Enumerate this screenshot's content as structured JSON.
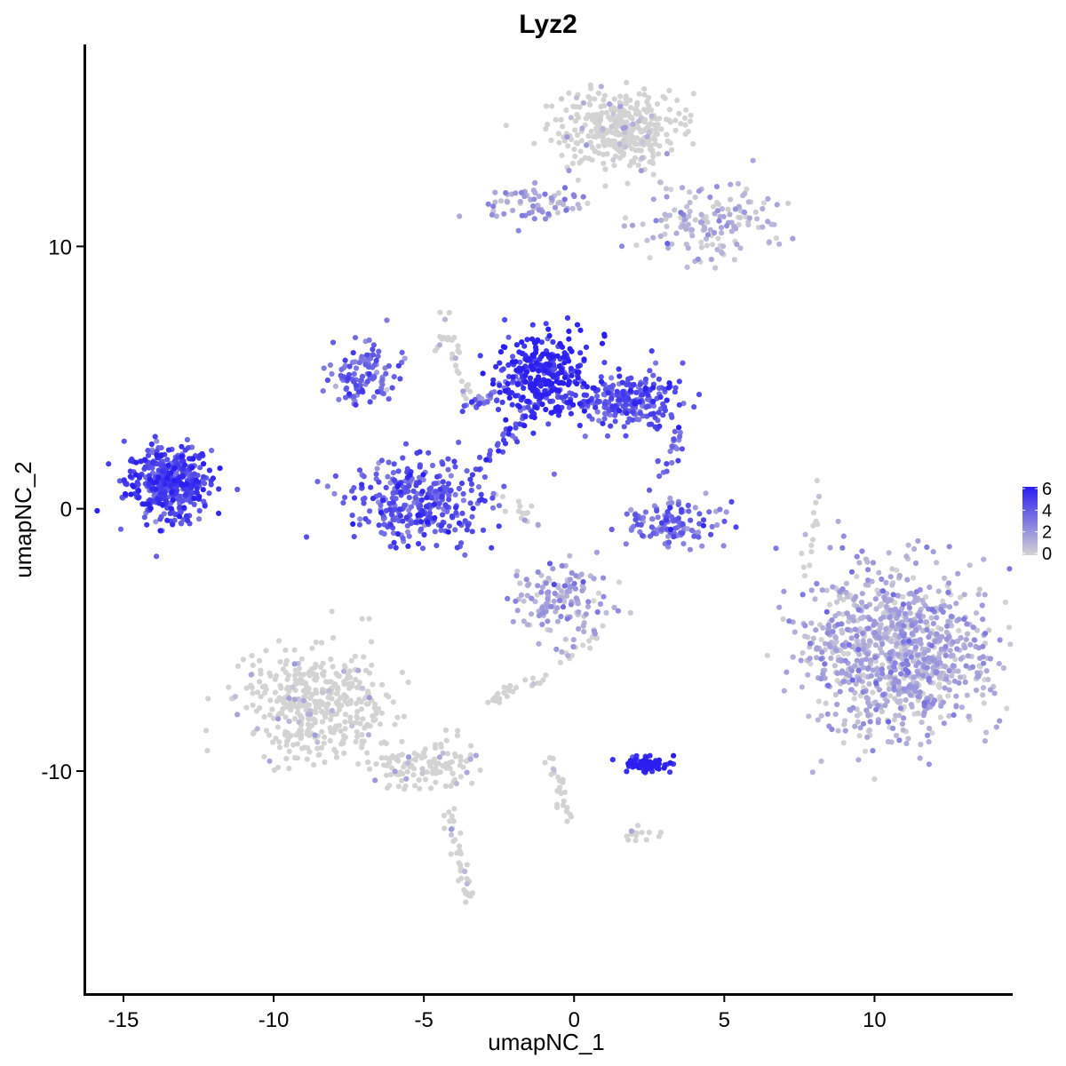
{
  "chart_data": {
    "type": "scatter",
    "title": "Lyz2",
    "xlabel": "umapNC_1",
    "ylabel": "umapNC_2",
    "xlim": [
      -16.3,
      14.6
    ],
    "ylim": [
      -18.5,
      17.7
    ],
    "x_ticks": [
      -15,
      -10,
      -5,
      0,
      5,
      10
    ],
    "x_tick_labels": [
      "-15",
      "-10",
      "-5",
      "0",
      "5",
      "10"
    ],
    "y_ticks": [
      10,
      0,
      -10
    ],
    "y_tick_labels": [
      "10",
      "0",
      "-10"
    ],
    "color_scale": {
      "low": "#d3d3d3",
      "high": "#2a1ff0",
      "min": 0,
      "max": 6
    },
    "legend": {
      "position": "right",
      "ticks": [
        "6",
        "4",
        "2",
        "0"
      ]
    },
    "grid": false,
    "clusters": [
      {
        "name": "far-left",
        "cx": -13.5,
        "cy": 1.0,
        "sx": 0.7,
        "sy": 0.7,
        "n": 420,
        "expr": 4.6
      },
      {
        "name": "upper-right-band",
        "cx": 1.5,
        "cy": 14.5,
        "sx": 1.0,
        "sy": 0.7,
        "n": 380,
        "expr": 0.3
      },
      {
        "name": "upper-right-arm",
        "cx": 4.5,
        "cy": 11.0,
        "sx": 1.2,
        "sy": 0.7,
        "n": 150,
        "expr": 0.8
      },
      {
        "name": "top-left-arm",
        "cx": -1.5,
        "cy": 11.7,
        "sx": 1.0,
        "sy": 0.35,
        "n": 70,
        "expr": 1.5
      },
      {
        "name": "center-hotspot",
        "cx": -1.0,
        "cy": 5.0,
        "sx": 0.8,
        "sy": 0.8,
        "n": 300,
        "expr": 5.6
      },
      {
        "name": "center-right",
        "cx": 1.8,
        "cy": 4.1,
        "sx": 0.9,
        "sy": 0.5,
        "n": 220,
        "expr": 4.2
      },
      {
        "name": "center-left-upper",
        "cx": -7.0,
        "cy": 5.2,
        "sx": 0.55,
        "sy": 0.6,
        "n": 110,
        "expr": 3.4
      },
      {
        "name": "center-arc-left",
        "cx": -5.2,
        "cy": 0.3,
        "sx": 1.2,
        "sy": 0.8,
        "n": 330,
        "expr": 4.1
      },
      {
        "name": "center-arc-right",
        "cx": 3.2,
        "cy": -0.5,
        "sx": 0.9,
        "sy": 0.4,
        "n": 120,
        "expr": 3.3
      },
      {
        "name": "right-large",
        "cx": 10.8,
        "cy": -5.5,
        "sx": 1.5,
        "sy": 1.6,
        "n": 1000,
        "expr": 1.1
      },
      {
        "name": "mid-lower",
        "cx": -0.5,
        "cy": -3.5,
        "sx": 0.8,
        "sy": 0.7,
        "n": 140,
        "expr": 1.3
      },
      {
        "name": "lower-left",
        "cx": -8.5,
        "cy": -7.5,
        "sx": 1.2,
        "sy": 1.0,
        "n": 420,
        "expr": 0.1
      },
      {
        "name": "lower-left-tail",
        "cx": -5.0,
        "cy": -9.8,
        "sx": 0.9,
        "sy": 0.5,
        "n": 120,
        "expr": 0.1
      },
      {
        "name": "lower-hotspot",
        "cx": 2.4,
        "cy": -9.7,
        "sx": 0.4,
        "sy": 0.15,
        "n": 90,
        "expr": 6.0
      }
    ],
    "trails": [
      {
        "from": [
          -3.5,
          3.8
        ],
        "to": [
          -1.2,
          5.5
        ],
        "n": 40,
        "expr": 3.0
      },
      {
        "from": [
          -3.0,
          1.8
        ],
        "to": [
          -1.5,
          3.8
        ],
        "n": 35,
        "expr": 4.5
      },
      {
        "from": [
          -4.2,
          -11.5
        ],
        "to": [
          -3.5,
          -15.0
        ],
        "n": 40,
        "expr": 0.1
      },
      {
        "from": [
          -4.3,
          7.5
        ],
        "to": [
          -3.5,
          4.0
        ],
        "n": 25,
        "expr": 0.4
      },
      {
        "from": [
          -1.5,
          -6.8
        ],
        "to": [
          1.0,
          -4.5
        ],
        "n": 25,
        "expr": 0.3
      },
      {
        "from": [
          -0.8,
          -9.5
        ],
        "to": [
          -0.2,
          -11.8
        ],
        "n": 25,
        "expr": 0.5
      },
      {
        "from": [
          -2.3,
          0.5
        ],
        "to": [
          -1.3,
          -0.5
        ],
        "n": 15,
        "expr": 0.3
      },
      {
        "from": [
          3.5,
          3.0
        ],
        "to": [
          2.8,
          1.0
        ],
        "n": 20,
        "expr": 3.5
      },
      {
        "from": [
          7.7,
          -2.5
        ],
        "to": [
          8.2,
          1.0
        ],
        "n": 15,
        "expr": 0.4
      },
      {
        "from": [
          -2.8,
          -7.4
        ],
        "to": [
          -2.0,
          -6.7
        ],
        "n": 20,
        "expr": 0.5
      },
      {
        "from": [
          1.8,
          -12.4
        ],
        "to": [
          2.8,
          -12.4
        ],
        "n": 15,
        "expr": 0.3
      },
      {
        "from": [
          -4.6,
          6.0
        ],
        "to": [
          -4.4,
          6.5
        ],
        "n": 8,
        "expr": 0.2
      }
    ]
  }
}
